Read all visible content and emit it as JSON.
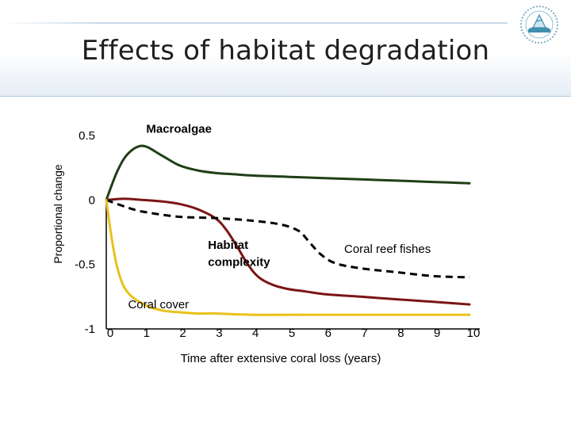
{
  "slide": {
    "title": "Effects of habitat degradation",
    "logo_icon": "coral-reef-logo-icon"
  },
  "chart_data": {
    "type": "line",
    "title": "Effects of habitat degradation",
    "xlabel": "Time after extensive coral loss (years)",
    "ylabel": "Proportional change",
    "xlim": [
      0,
      10
    ],
    "ylim": [
      -1,
      0.5
    ],
    "x_ticks": [
      "0",
      "1",
      "2",
      "3",
      "4",
      "5",
      "6",
      "7",
      "8",
      "9",
      "10"
    ],
    "y_ticks": [
      "0.5",
      "0",
      "-0.5",
      "-1"
    ],
    "series": [
      {
        "name": "Macroalgae",
        "color": "#1e3f16",
        "style": "solid",
        "x": [
          0,
          0.3,
          0.6,
          1.0,
          1.5,
          2.0,
          2.5,
          3.0,
          3.5,
          4.0,
          5.0,
          6.0,
          7.0,
          8.0,
          9.0,
          10.0
        ],
        "y": [
          0,
          0.22,
          0.36,
          0.42,
          0.35,
          0.27,
          0.23,
          0.21,
          0.2,
          0.19,
          0.18,
          0.17,
          0.16,
          0.15,
          0.14,
          0.13
        ]
      },
      {
        "name": "Habitat complexity",
        "color": "#7b1515",
        "style": "solid",
        "x": [
          0,
          0.5,
          1.0,
          1.5,
          2.0,
          2.5,
          3.0,
          3.3,
          3.6,
          3.9,
          4.2,
          4.6,
          5.0,
          5.5,
          6.0,
          7.0,
          8.0,
          9.0,
          10.0
        ],
        "y": [
          0,
          0.01,
          0.0,
          -0.01,
          -0.03,
          -0.07,
          -0.14,
          -0.23,
          -0.36,
          -0.5,
          -0.6,
          -0.66,
          -0.69,
          -0.71,
          -0.73,
          -0.75,
          -0.77,
          -0.79,
          -0.81
        ]
      },
      {
        "name": "Coral reef fishes",
        "color": "#000000",
        "style": "dashed",
        "x": [
          0,
          0.5,
          1.0,
          2.0,
          3.0,
          4.0,
          4.8,
          5.3,
          5.6,
          5.9,
          6.3,
          7.0,
          8.0,
          9.0,
          10.0
        ],
        "y": [
          0,
          -0.05,
          -0.09,
          -0.13,
          -0.14,
          -0.16,
          -0.19,
          -0.24,
          -0.33,
          -0.42,
          -0.49,
          -0.53,
          -0.56,
          -0.59,
          -0.6
        ]
      },
      {
        "name": "Coral cover",
        "color": "#e8c21a",
        "style": "solid",
        "x": [
          0,
          0.15,
          0.3,
          0.5,
          0.8,
          1.2,
          1.6,
          2.0,
          2.5,
          3.0,
          4.0,
          6.0,
          8.0,
          10.0
        ],
        "y": [
          0,
          -0.3,
          -0.52,
          -0.68,
          -0.77,
          -0.83,
          -0.86,
          -0.87,
          -0.88,
          -0.88,
          -0.89,
          -0.89,
          -0.89,
          -0.89
        ]
      }
    ],
    "annotations": [
      {
        "text": "Macroalgae",
        "x": 1.1,
        "y": 0.52,
        "bold": true
      },
      {
        "text": "Habitat",
        "x": 2.8,
        "y": -0.38,
        "bold": true
      },
      {
        "text": "complexity",
        "x": 2.8,
        "y": -0.51,
        "bold": true
      },
      {
        "text": "Coral reef fishes",
        "x": 6.55,
        "y": -0.41,
        "bold": false
      },
      {
        "text": "Coral cover",
        "x": 0.6,
        "y": -0.84,
        "bold": false
      }
    ]
  }
}
